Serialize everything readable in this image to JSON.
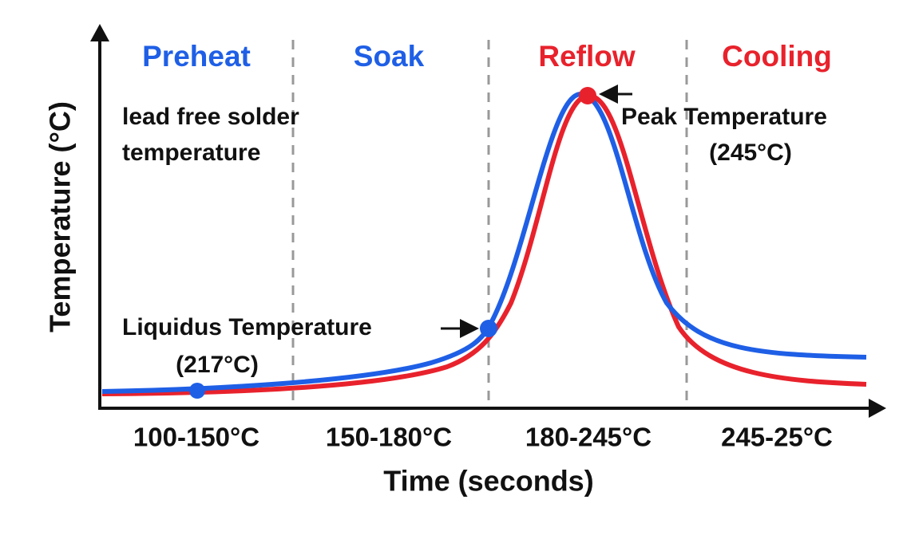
{
  "zones": [
    {
      "label": "Preheat",
      "range": "100-150°C"
    },
    {
      "label": "Soak",
      "range": "150-180°C"
    },
    {
      "label": "Reflow",
      "range": "180-245°C"
    },
    {
      "label": "Cooling",
      "range": "245-25°C"
    }
  ],
  "note": [
    "lead free solder",
    "temperature"
  ],
  "liquidus": {
    "label": "Liquidus Temperature",
    "value": "(217°C)"
  },
  "peak": {
    "label": "Peak Temperature",
    "value": "(245°C)"
  },
  "x_axis_label": "Time (seconds)",
  "y_axis_label": "Temperature (°C)"
}
